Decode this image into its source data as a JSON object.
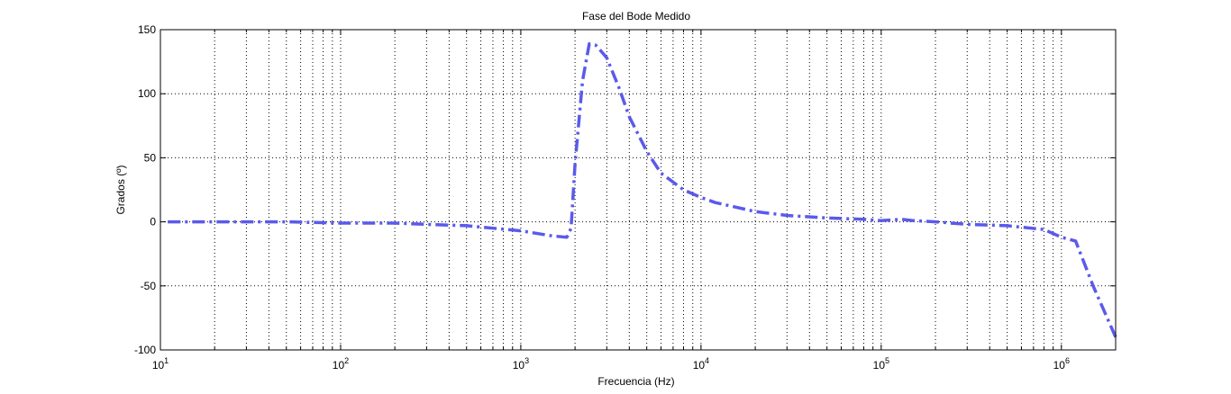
{
  "chart_data": {
    "type": "line",
    "title": "Fase del Bode Medido",
    "xlabel": "Frecuencia (Hz)",
    "ylabel": "Grados (º)",
    "xscale": "log",
    "xlim": [
      10,
      2000000
    ],
    "ylim": [
      -100,
      150
    ],
    "yticks": [
      -100,
      -50,
      0,
      50,
      100,
      150
    ],
    "xticks": [
      {
        "value": 10,
        "base": "10",
        "exp": "1"
      },
      {
        "value": 100,
        "base": "10",
        "exp": "2"
      },
      {
        "value": 1000,
        "base": "10",
        "exp": "3"
      },
      {
        "value": 10000,
        "base": "10",
        "exp": "4"
      },
      {
        "value": 100000,
        "base": "10",
        "exp": "5"
      },
      {
        "value": 1000000,
        "base": "10",
        "exp": "6"
      }
    ],
    "grid": true,
    "series": [
      {
        "color": "#5a5aeb",
        "line_style": "dash-dot",
        "x": [
          11,
          20,
          50,
          100,
          200,
          300,
          500,
          1000,
          1500,
          1800,
          1900,
          2000,
          2200,
          2400,
          2600,
          2800,
          3000,
          3500,
          4000,
          5000,
          6000,
          8000,
          10000,
          12000,
          15000,
          20000,
          30000,
          50000,
          80000,
          100000,
          130000,
          150000,
          200000,
          300000,
          500000,
          800000,
          1000000,
          1200000,
          1500000,
          2000000
        ],
        "y": [
          0,
          0,
          0,
          -1,
          -1,
          -2,
          -3,
          -7,
          -11,
          -12,
          -5,
          45,
          110,
          139,
          138,
          133,
          128,
          105,
          82,
          55,
          38,
          25,
          19,
          15,
          12,
          8,
          5,
          3,
          2,
          1,
          2,
          1,
          0,
          -2,
          -3,
          -6,
          -12,
          -15,
          -50,
          -90
        ]
      }
    ]
  }
}
